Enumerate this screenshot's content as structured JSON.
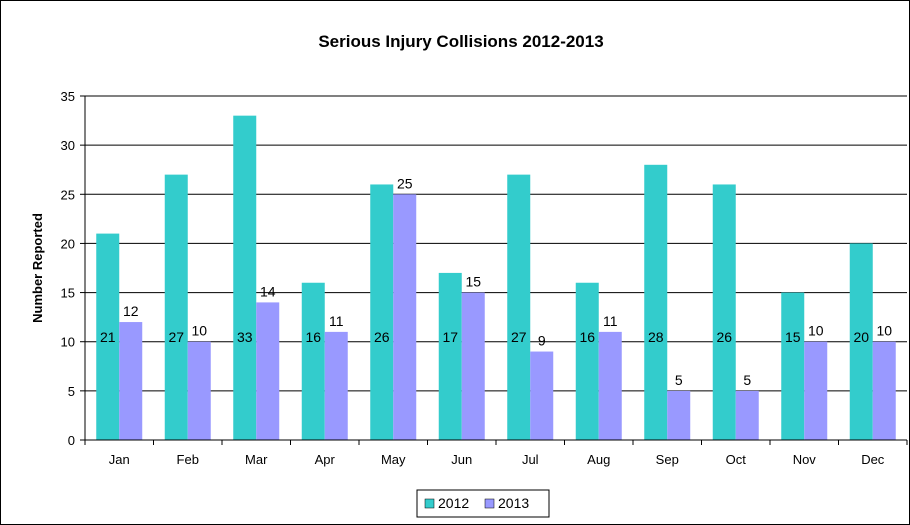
{
  "chart_data": {
    "type": "bar",
    "title": "Serious Injury Collisions 2012-2013",
    "xlabel": "",
    "ylabel": "Number Reported",
    "ylim": [
      0,
      35
    ],
    "ytick_step": 5,
    "grid": true,
    "legend_position": "bottom",
    "categories": [
      "Jan",
      "Feb",
      "Mar",
      "Apr",
      "May",
      "Jun",
      "Jul",
      "Aug",
      "Sep",
      "Oct",
      "Nov",
      "Dec"
    ],
    "series": [
      {
        "name": "2012",
        "color": "#33cccc",
        "values": [
          21,
          27,
          33,
          16,
          26,
          17,
          27,
          16,
          28,
          26,
          15,
          20
        ],
        "label_position": "inside-low"
      },
      {
        "name": "2013",
        "color": "#9999ff",
        "values": [
          12,
          10,
          14,
          11,
          25,
          15,
          9,
          11,
          5,
          5,
          10,
          10
        ],
        "label_position": "above"
      }
    ]
  }
}
